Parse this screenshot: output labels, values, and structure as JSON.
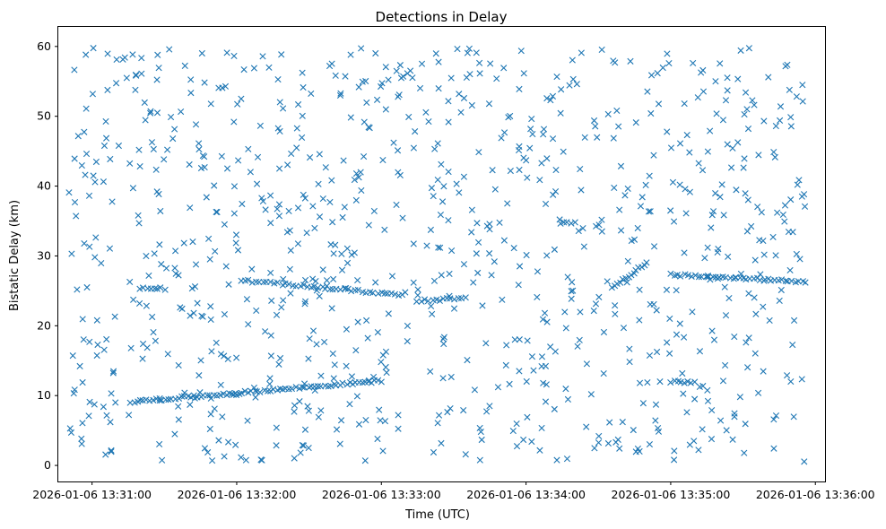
{
  "chart_data": {
    "type": "scatter",
    "title": "Detections in Delay",
    "xlabel": "Time (UTC)",
    "ylabel": "Bistatic Delay (km)",
    "marker": "x",
    "color": "#1f77b4",
    "grid": false,
    "x_ticks": [
      "2026-01-06 13:31:00",
      "2026-01-06 13:32:00",
      "2026-01-06 13:33:00",
      "2026-01-06 13:34:00",
      "2026-01-06 13:35:00",
      "2026-01-06 13:36:00"
    ],
    "y_ticks": [
      "0",
      "10",
      "20",
      "30",
      "40",
      "50",
      "60"
    ],
    "ylim": [
      -2.3,
      62.8
    ],
    "xlim": [
      "2026-01-06 13:30:46",
      "2026-01-06 13:36:04"
    ],
    "x_start": "2026-01-06 13:30:50",
    "x_end": "2026-01-06 13:35:56",
    "clutter_points": 900,
    "tracks": [
      {
        "name": "track-low",
        "from": [
          "2026-01-06 13:31:16",
          9.1
        ],
        "to": [
          "2026-01-06 13:33:00",
          12.1
        ],
        "points": 80
      },
      {
        "name": "track-mid-1",
        "from": [
          "2026-01-06 13:32:02",
          26.5
        ],
        "to": [
          "2026-01-06 13:33:09",
          24.4
        ],
        "points": 45
      },
      {
        "name": "track-mid-2",
        "from": [
          "2026-01-06 13:33:15",
          23.6
        ],
        "to": [
          "2026-01-06 13:33:35",
          23.9
        ],
        "points": 14
      },
      {
        "name": "track-right",
        "from": [
          "2026-01-06 13:35:00",
          27.3
        ],
        "to": [
          "2026-01-06 13:35:56",
          26.3
        ],
        "points": 40
      },
      {
        "name": "track-rise",
        "from": [
          "2026-01-06 13:34:36",
          25.5
        ],
        "to": [
          "2026-01-06 13:34:50",
          29.0
        ],
        "points": 14
      },
      {
        "name": "track-flat-a",
        "from": [
          "2026-01-06 13:31:20",
          25.3
        ],
        "to": [
          "2026-01-06 13:31:30",
          25.3
        ],
        "points": 8
      },
      {
        "name": "track-flat-b",
        "from": [
          "2026-01-06 13:35:00",
          12.0
        ],
        "to": [
          "2026-01-06 13:35:10",
          11.8
        ],
        "points": 8
      },
      {
        "name": "track-flat-c",
        "from": [
          "2026-01-06 13:34:14",
          34.7
        ],
        "to": [
          "2026-01-06 13:34:20",
          34.7
        ],
        "points": 5
      }
    ]
  }
}
